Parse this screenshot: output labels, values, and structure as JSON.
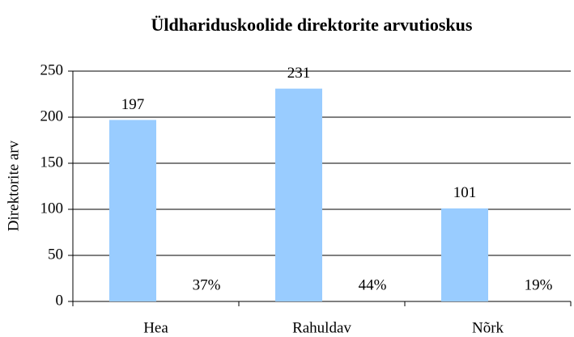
{
  "chart_data": {
    "type": "bar",
    "title": "Üldhariduskoolide direktorite arvutioskus",
    "y_label": "Direktorite arv",
    "categories": [
      "Hea",
      "Rahuldav",
      "Nõrk"
    ],
    "values": [
      197,
      231,
      101
    ],
    "color": "#99ccff",
    "annotations": [
      "37%",
      "44%",
      "19%"
    ],
    "ylim": [
      0,
      250
    ],
    "yticks": [
      0,
      50,
      100,
      150,
      200,
      250
    ],
    "grid": true
  }
}
